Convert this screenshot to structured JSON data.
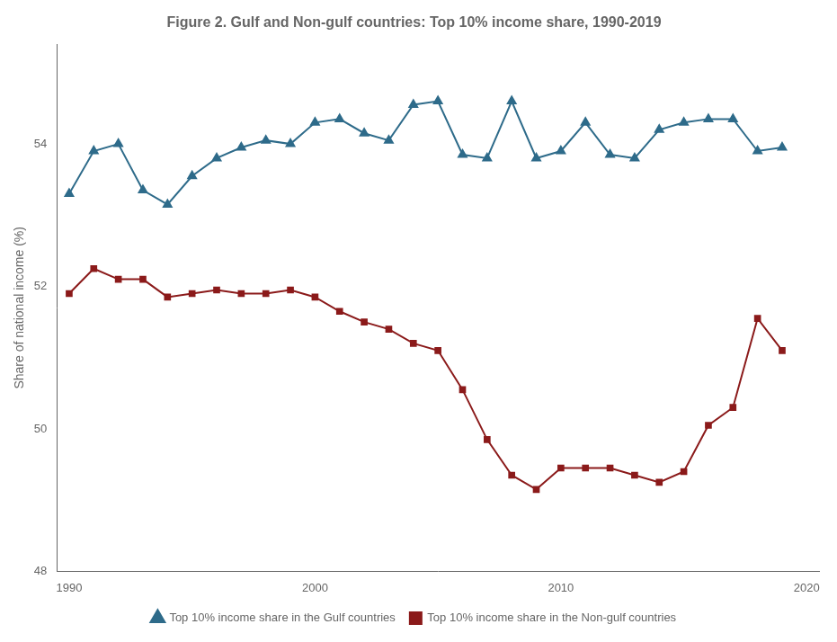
{
  "chart_data": {
    "type": "line",
    "title": "Figure 2. Gulf and Non-gulf countries: Top 10% income share, 1990-2019",
    "ylabel": "Share of national income (%)",
    "x": [
      1990,
      1991,
      1992,
      1993,
      1994,
      1995,
      1996,
      1997,
      1998,
      1999,
      2000,
      2001,
      2002,
      2003,
      2004,
      2005,
      2006,
      2007,
      2008,
      2009,
      2010,
      2011,
      2012,
      2013,
      2014,
      2015,
      2016,
      2017,
      2018,
      2019
    ],
    "series": [
      {
        "name": "Top 10% income share in the Gulf countries",
        "color": "#2e6b8a",
        "marker": "triangle",
        "values": [
          53.3,
          53.9,
          54.0,
          53.35,
          53.15,
          53.55,
          53.8,
          53.95,
          54.05,
          54.0,
          54.3,
          54.35,
          54.15,
          54.05,
          54.55,
          54.6,
          53.85,
          53.8,
          54.6,
          53.8,
          53.9,
          54.3,
          53.85,
          53.8,
          54.2,
          54.3,
          54.35,
          54.35,
          53.9,
          53.95
        ]
      },
      {
        "name": "Top 10% income share in the Non-gulf countries",
        "color": "#8b1a1a",
        "marker": "square",
        "values": [
          51.9,
          52.25,
          52.1,
          52.1,
          51.85,
          51.9,
          51.95,
          51.9,
          51.9,
          51.95,
          51.85,
          51.65,
          51.5,
          51.4,
          51.2,
          51.1,
          50.55,
          49.85,
          49.35,
          49.15,
          49.45,
          49.45,
          49.45,
          49.35,
          49.25,
          49.4,
          50.05,
          50.3,
          51.55,
          51.1
        ]
      }
    ],
    "xlim": [
      1989.5,
      2020.5
    ],
    "ylim": [
      48.0,
      55.4
    ],
    "xticks": [
      1990,
      2000,
      2010,
      2020
    ],
    "yticks": [
      48,
      50,
      52,
      54
    ],
    "grid": false,
    "legend": "bottom"
  }
}
